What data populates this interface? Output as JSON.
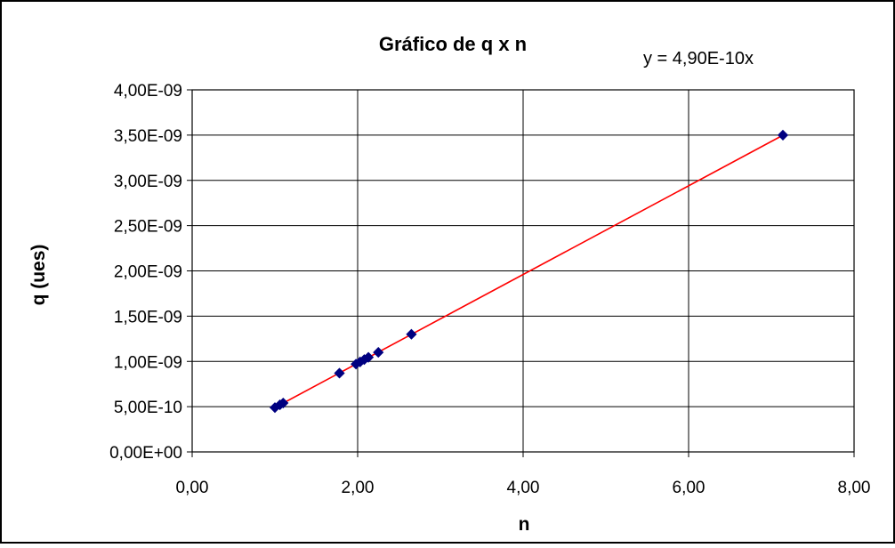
{
  "chart_data": {
    "type": "scatter",
    "title": "Gráfico de q x n",
    "xlabel": "n",
    "ylabel": "q (ues)",
    "xlim": [
      0,
      8
    ],
    "ylim": [
      0,
      4e-09
    ],
    "x_ticks": [
      0,
      2,
      4,
      6,
      8
    ],
    "y_ticks": [
      0,
      5e-10,
      1e-09,
      1.5e-09,
      2e-09,
      2.5e-09,
      3e-09,
      3.5e-09,
      4e-09
    ],
    "x_tick_labels": [
      "0,00",
      "2,00",
      "4,00",
      "6,00",
      "8,00"
    ],
    "y_tick_labels": [
      "0,00E+00",
      "5,00E-10",
      "1,00E-09",
      "1,50E-09",
      "2,00E-09",
      "2,50E-09",
      "3,00E-09",
      "3,50E-09",
      "4,00E-09"
    ],
    "grid": true,
    "series": [
      {
        "marker_color": "#000080",
        "points": [
          {
            "x": 1.0,
            "y": 4.9e-10
          },
          {
            "x": 1.06,
            "y": 5.2e-10
          },
          {
            "x": 1.1,
            "y": 5.4e-10
          },
          {
            "x": 1.78,
            "y": 8.7e-10
          },
          {
            "x": 1.98,
            "y": 9.7e-10
          },
          {
            "x": 2.03,
            "y": 9.95e-10
          },
          {
            "x": 2.08,
            "y": 1.02e-09
          },
          {
            "x": 2.13,
            "y": 1.045e-09
          },
          {
            "x": 2.25,
            "y": 1.1e-09
          },
          {
            "x": 2.65,
            "y": 1.3e-09
          },
          {
            "x": 7.14,
            "y": 3.5e-09
          }
        ]
      }
    ],
    "trendline": {
      "equation": "y = 4,90E-10x",
      "slope": 4.9e-10,
      "x_start": 1.0,
      "x_end": 7.14,
      "color": "#ff0000"
    },
    "colors": {
      "gridline": "#000000",
      "border": "#000000"
    }
  }
}
